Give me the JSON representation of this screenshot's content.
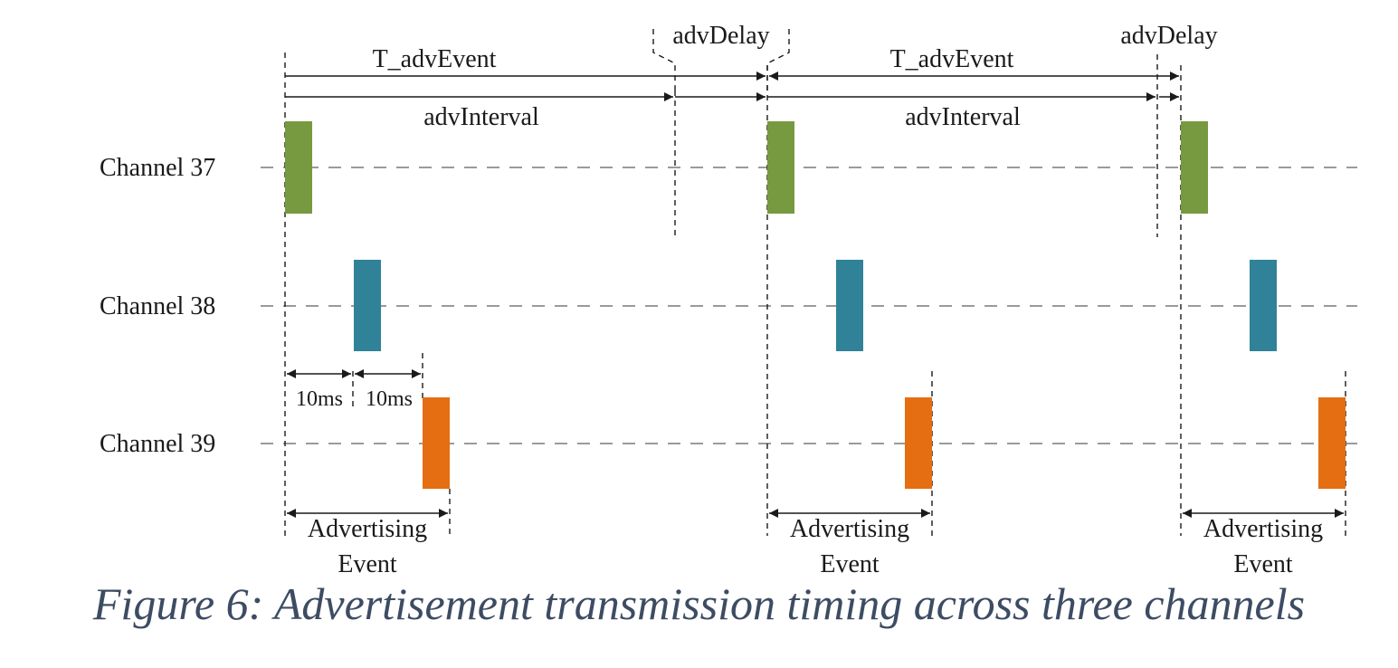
{
  "channels": [
    "Channel 37",
    "Channel 38",
    "Channel 39"
  ],
  "labels": {
    "t_adv_event": "T_advEvent",
    "adv_interval": "advInterval",
    "adv_delay": "advDelay",
    "gap_10ms": "10ms",
    "advertising": "Advertising",
    "event": "Event"
  },
  "colors": {
    "channel_37": "#77993f",
    "channel_38": "#2f8298",
    "channel_39": "#e56e13",
    "line": "#1a1a1a",
    "channel_line": "#9a9a9a",
    "caption": "#3d4c63"
  },
  "caption": "Figure 6: Advertisement transmission timing across three channels"
}
